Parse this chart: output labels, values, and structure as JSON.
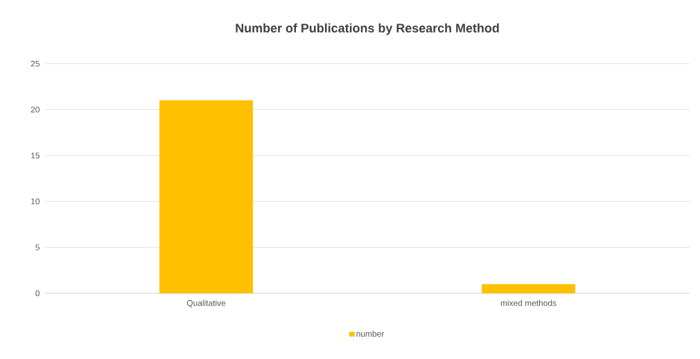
{
  "chart_data": {
    "type": "bar",
    "title": "Number of Publications by Research Method",
    "categories": [
      "Qualitative",
      "mixed methods"
    ],
    "series": [
      {
        "name": "number",
        "color": "#ffc000",
        "values": [
          21,
          1
        ]
      }
    ],
    "ylim": [
      0,
      25
    ],
    "yticks": [
      0,
      5,
      10,
      15,
      20,
      25
    ],
    "grid": "y",
    "legend": "bottom"
  }
}
